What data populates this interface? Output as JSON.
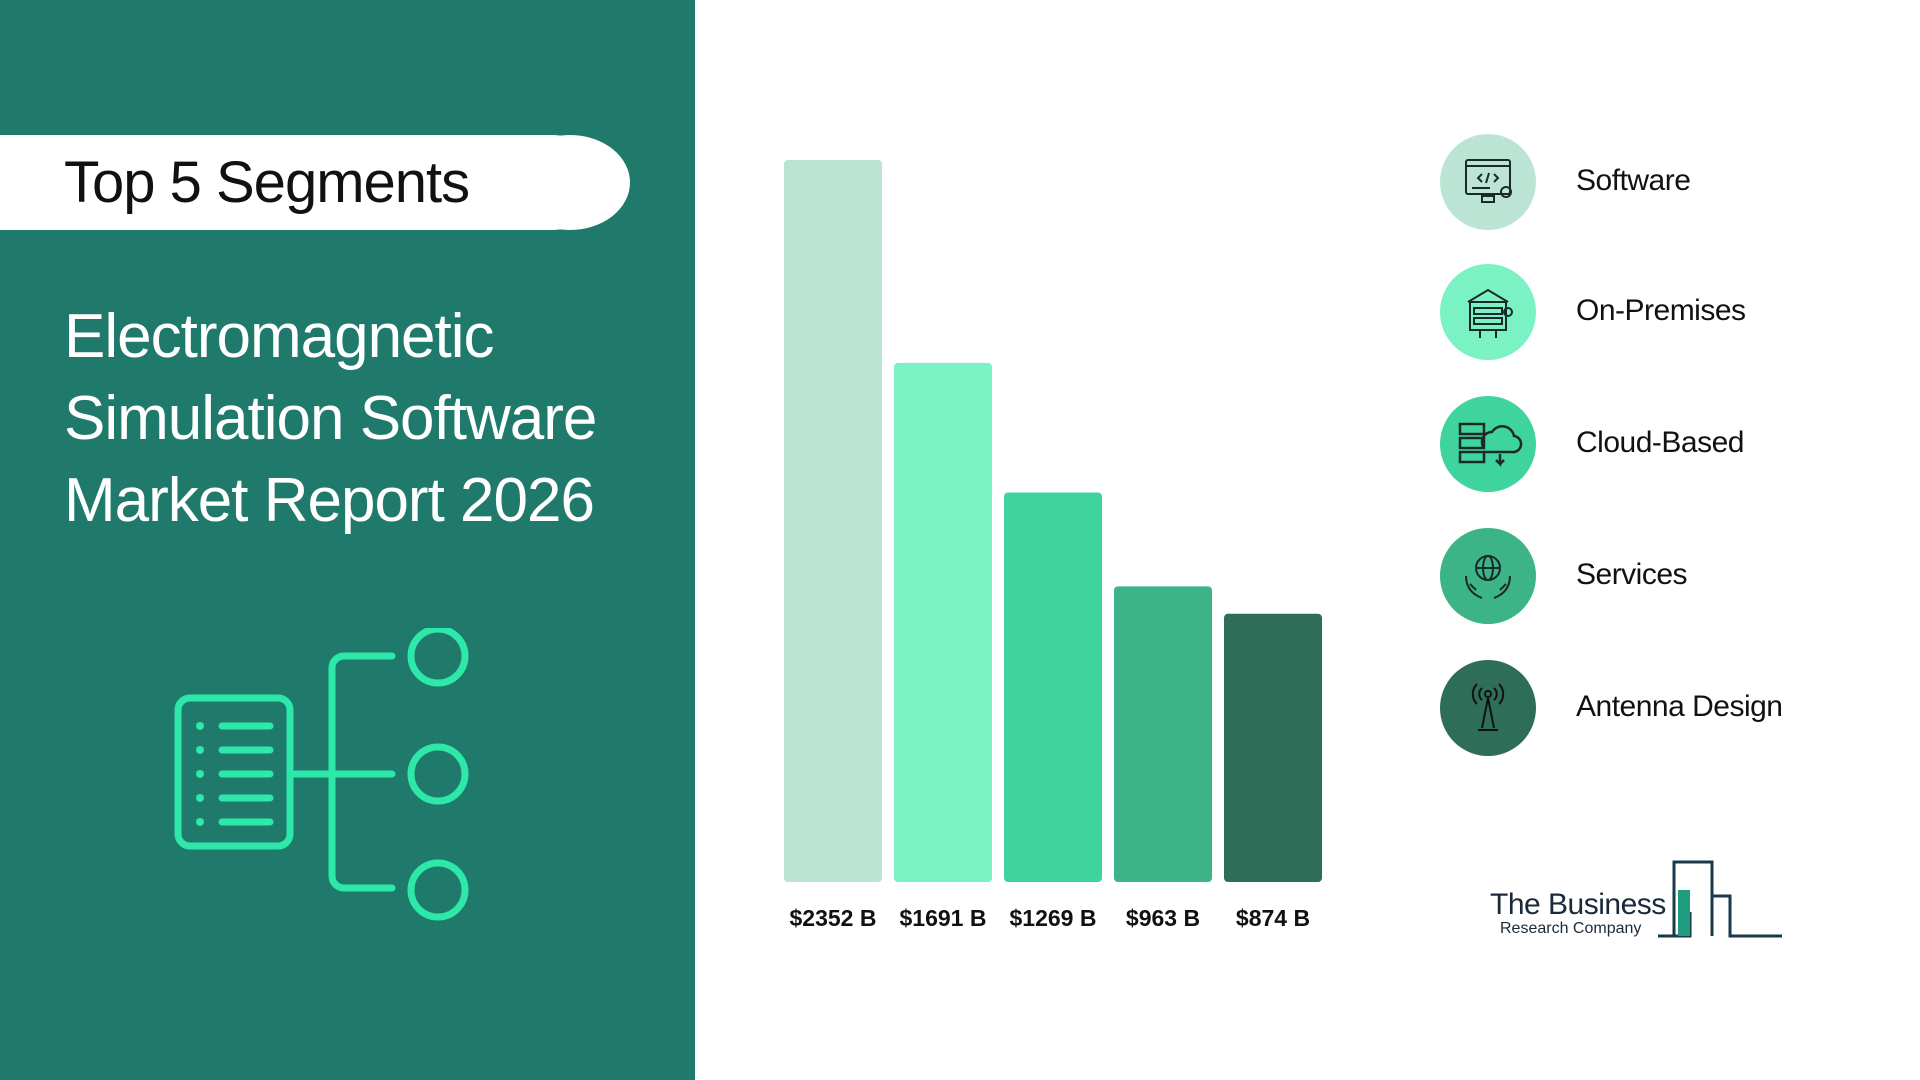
{
  "header": {
    "pill_label": "Top 5 Segments",
    "title_lines": [
      "Electromagnetic",
      "Simulation Software",
      "Market Report 2026"
    ]
  },
  "chart_data": {
    "type": "bar",
    "categories": [
      "Software",
      "On-Premises",
      "Cloud-Based",
      "Services",
      "Antenna Design"
    ],
    "values": [
      2352,
      1691,
      1269,
      963,
      874
    ],
    "value_labels": [
      "$2352 B",
      "$1691 B",
      "$1269 B",
      "$963 B",
      "$874 B"
    ],
    "colors": [
      "#bce4d5",
      "#7af2c4",
      "#3fd49d",
      "#3db487",
      "#2e6e58"
    ],
    "ylim": [
      0,
      2352
    ],
    "grid": false,
    "legend": "right"
  },
  "legend": {
    "items": [
      {
        "label": "Software",
        "icon": "computer-code-icon",
        "color": "#bce4d5"
      },
      {
        "label": "On-Premises",
        "icon": "server-building-icon",
        "color": "#7af2c4"
      },
      {
        "label": "Cloud-Based",
        "icon": "cloud-server-icon",
        "color": "#3fd49d"
      },
      {
        "label": "Services",
        "icon": "hands-globe-icon",
        "color": "#3db487"
      },
      {
        "label": "Antenna Design",
        "icon": "antenna-icon",
        "color": "#2e6e58"
      }
    ]
  },
  "logo": {
    "line1": "The Business",
    "line2": "Research Company"
  }
}
